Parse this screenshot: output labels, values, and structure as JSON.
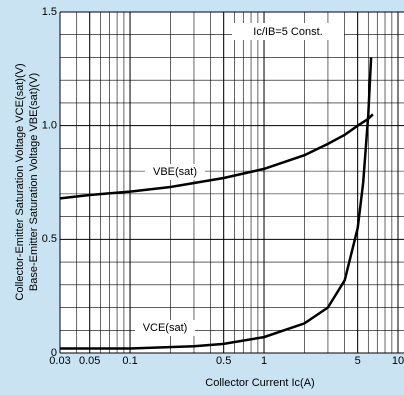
{
  "chart_data": {
    "type": "line",
    "x_label": "Collector Current Ic(A)",
    "y_label": [
      "Collector-Emitter Saturation Voltage VCE(sat)(V)",
      "Base-Emitter Saturation Voltage VBE(sat)(V)"
    ],
    "annotation": "Ic/IB=5 Const.",
    "x_scale": "log",
    "grid": true,
    "xlim": [
      0.03,
      10
    ],
    "ylim": [
      0,
      1.5
    ],
    "xticks": [
      0.03,
      0.05,
      0.1,
      0.5,
      1,
      5,
      10
    ],
    "yticks": [
      0,
      0.5,
      {
        "value": 1,
        "label": "1.0"
      },
      {
        "value": 1.5,
        "label": "1.5"
      }
    ],
    "series": [
      {
        "name": "VBE(sat)",
        "color": "#000000",
        "x": [
          0.03,
          0.05,
          0.1,
          0.2,
          0.5,
          1,
          2,
          3,
          4,
          5,
          6,
          6.5
        ],
        "values": [
          0.68,
          0.695,
          0.71,
          0.73,
          0.77,
          0.81,
          0.87,
          0.92,
          0.96,
          1.0,
          1.03,
          1.05
        ]
      },
      {
        "name": "VCE(sat)",
        "color": "#000000",
        "x": [
          0.03,
          0.1,
          0.3,
          0.5,
          1,
          2,
          3,
          4,
          5,
          5.5,
          6,
          6.3
        ],
        "values": [
          0.02,
          0.02,
          0.03,
          0.04,
          0.07,
          0.13,
          0.2,
          0.32,
          0.55,
          0.75,
          1.05,
          1.3
        ]
      }
    ]
  }
}
